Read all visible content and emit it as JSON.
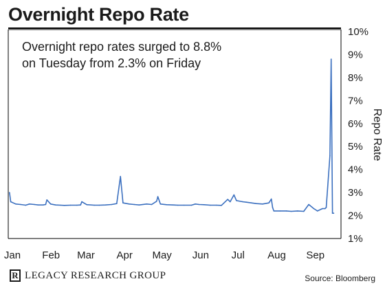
{
  "chart_data": {
    "type": "line",
    "title": "Overnight Repo Rate",
    "annotation": "Overnight repo rates surged to 8.8% on Tuesday from 2.3% on Friday",
    "ylabel": "Repo Rate",
    "xlabel": "",
    "x_tick_labels": [
      "Jan",
      "Feb",
      "Mar",
      "Apr",
      "May",
      "Jun",
      "Jul",
      "Aug",
      "Sep"
    ],
    "y_tick_labels": [
      "10%",
      "9%",
      "8%",
      "7%",
      "6%",
      "5%",
      "4%",
      "3%",
      "2%",
      "1%"
    ],
    "ylim": [
      1,
      10
    ],
    "y_axis_position": "right",
    "grid": false,
    "line_color": "#3a6fbf",
    "series": [
      {
        "x": [
          "2019-01-02",
          "2019-01-03",
          "2019-01-07",
          "2019-01-11",
          "2019-01-15",
          "2019-01-18",
          "2019-01-22",
          "2019-01-25",
          "2019-01-29",
          "2019-01-31",
          "2019-02-01",
          "2019-02-04",
          "2019-02-08",
          "2019-02-12",
          "2019-02-15",
          "2019-02-20",
          "2019-02-25",
          "2019-02-28",
          "2019-03-01",
          "2019-03-05",
          "2019-03-11",
          "2019-03-15",
          "2019-03-20",
          "2019-03-25",
          "2019-03-29",
          "2019-04-01",
          "2019-04-03",
          "2019-04-08",
          "2019-04-12",
          "2019-04-16",
          "2019-04-22",
          "2019-04-26",
          "2019-04-30",
          "2019-05-01",
          "2019-05-03",
          "2019-05-08",
          "2019-05-13",
          "2019-05-17",
          "2019-05-22",
          "2019-05-28",
          "2019-05-31",
          "2019-06-03",
          "2019-06-07",
          "2019-06-12",
          "2019-06-17",
          "2019-06-21",
          "2019-06-26",
          "2019-06-28",
          "2019-07-01",
          "2019-07-03",
          "2019-07-08",
          "2019-07-11",
          "2019-07-15",
          "2019-07-19",
          "2019-07-24",
          "2019-07-29",
          "2019-07-31",
          "2019-08-01",
          "2019-08-02",
          "2019-08-07",
          "2019-08-12",
          "2019-08-16",
          "2019-08-21",
          "2019-08-26",
          "2019-08-30",
          "2019-09-03",
          "2019-09-06",
          "2019-09-10",
          "2019-09-12",
          "2019-09-13",
          "2019-09-16",
          "2019-09-17",
          "2019-09-18",
          "2019-09-19"
        ],
        "y": [
          3.0,
          2.6,
          2.5,
          2.48,
          2.45,
          2.5,
          2.48,
          2.46,
          2.46,
          2.48,
          2.68,
          2.5,
          2.46,
          2.45,
          2.44,
          2.45,
          2.45,
          2.46,
          2.6,
          2.47,
          2.45,
          2.45,
          2.46,
          2.48,
          2.52,
          3.7,
          2.55,
          2.5,
          2.48,
          2.46,
          2.5,
          2.48,
          2.62,
          2.82,
          2.5,
          2.47,
          2.46,
          2.45,
          2.45,
          2.45,
          2.5,
          2.48,
          2.47,
          2.45,
          2.45,
          2.44,
          2.7,
          2.6,
          2.9,
          2.65,
          2.6,
          2.58,
          2.55,
          2.52,
          2.5,
          2.55,
          2.72,
          2.35,
          2.2,
          2.2,
          2.2,
          2.18,
          2.2,
          2.18,
          2.48,
          2.3,
          2.2,
          2.3,
          2.3,
          2.35,
          4.6,
          8.8,
          2.1,
          2.1
        ]
      }
    ]
  },
  "branding": {
    "logo_mark": "R",
    "logo_text": "LEGACY RESEARCH GROUP",
    "source": "Source: Bloomberg"
  }
}
